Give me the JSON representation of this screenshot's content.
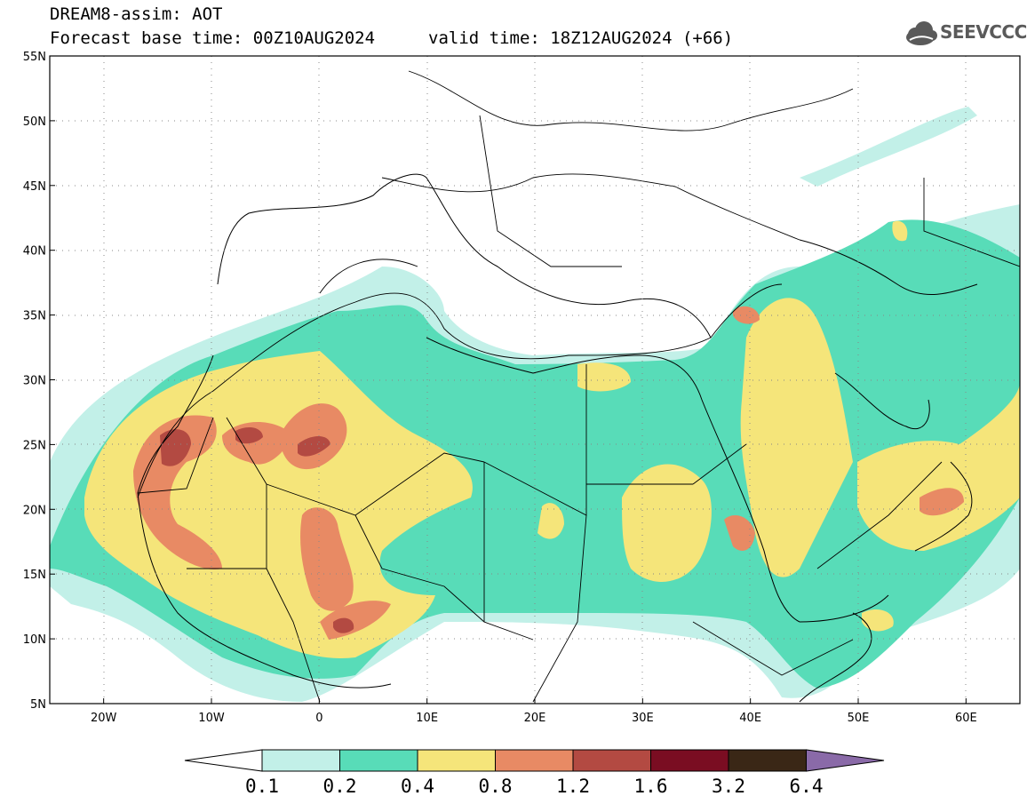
{
  "header": {
    "line1": "DREAM8-assim: AOT",
    "line2": "Forecast base time: 00Z10AUG2024",
    "valid": "valid time: 18Z12AUG2024 (+66)"
  },
  "logo": {
    "text": "SEEVCCC",
    "icon": "cloud-icon"
  },
  "map": {
    "lon_range": [
      -25,
      65
    ],
    "lat_range": [
      5,
      55
    ],
    "lat_labels": [
      "55N",
      "50N",
      "45N",
      "40N",
      "35N",
      "30N",
      "25N",
      "20N",
      "15N",
      "10N",
      "5N"
    ],
    "lon_labels": [
      "20W",
      "10W",
      "0",
      "10E",
      "20E",
      "30E",
      "40E",
      "50E",
      "60E"
    ],
    "grid": "dotted"
  },
  "colorbar": {
    "levels": [
      "0.1",
      "0.2",
      "0.4",
      "0.8",
      "1.2",
      "1.6",
      "3.2",
      "6.4"
    ],
    "colors": [
      "#ffffff",
      "#c2f0e8",
      "#58dcb8",
      "#f5e57a",
      "#e88a64",
      "#b34a42",
      "#7a0d22",
      "#3a2716",
      "#8a6aa8"
    ]
  }
}
